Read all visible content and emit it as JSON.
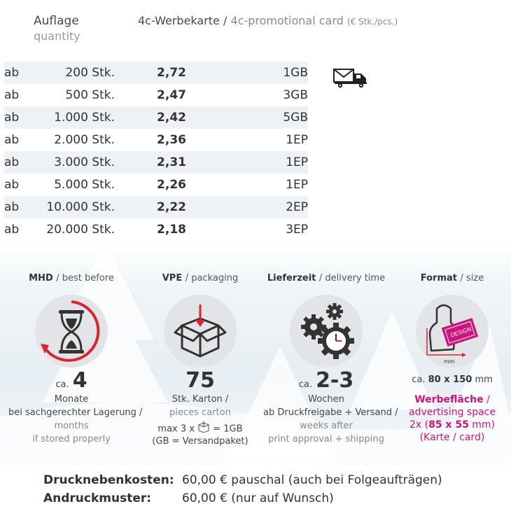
{
  "header": {
    "quantity_de": "Auflage",
    "quantity_en": "quantity",
    "product_de": "4c-Werbekarte /",
    "product_en": "4c-promotional card",
    "unit": "(€ Stk./pcs.)"
  },
  "prices": {
    "rows": [
      {
        "prefix": "ab",
        "qty": "200 Stk.",
        "price": "2,72",
        "ship": "1GB"
      },
      {
        "prefix": "ab",
        "qty": "500 Stk.",
        "price": "2,47",
        "ship": "3GB"
      },
      {
        "prefix": "ab",
        "qty": "1.000 Stk.",
        "price": "2,42",
        "ship": "5GB"
      },
      {
        "prefix": "ab",
        "qty": "2.000 Stk.",
        "price": "2,36",
        "ship": "1EP"
      },
      {
        "prefix": "ab",
        "qty": "3.000 Stk.",
        "price": "2,31",
        "ship": "1EP"
      },
      {
        "prefix": "ab",
        "qty": "5.000 Stk.",
        "price": "2,26",
        "ship": "1EP"
      },
      {
        "prefix": "ab",
        "qty": "10.000 Stk.",
        "price": "2,22",
        "ship": "2EP"
      },
      {
        "prefix": "ab",
        "qty": "20.000 Stk.",
        "price": "2,18",
        "ship": "3EP"
      }
    ]
  },
  "icons": {
    "shipping": "mail-truck-icon"
  },
  "mhd": {
    "title_de": "MHD",
    "title_en": "/ best before",
    "prefix": "ca.",
    "value": "4",
    "line1": "Monate",
    "line2": "bei sachgerechter Lagerung /",
    "line3": "months",
    "line4": "if stored properly"
  },
  "vpe": {
    "title_de": "VPE",
    "title_en": "/ packaging",
    "value": "75",
    "line1": "Stk. Karton /",
    "line2": "pieces carton",
    "note_pre": "max 3 x",
    "note_post": "= 1GB",
    "note2": "(GB = Versandpaket)"
  },
  "delivery": {
    "title_de": "Lieferzeit",
    "title_en": "/ delivery time",
    "prefix": "ca.",
    "value": "2-3",
    "line1": "Wochen",
    "line2": "ab Druckfreigabe + Versand /",
    "line3": "weeks after",
    "line4": "print approval + shipping"
  },
  "format": {
    "title_de": "Format",
    "title_en": "/ size",
    "card_label": "DESIGN",
    "mm_label": "mm",
    "dim_pre": "ca.",
    "dim_value": "80 x 150",
    "dim_unit": "mm",
    "ad_de": "Werbefläche",
    "ad_slash": " /",
    "ad_en": "advertising space",
    "ad_count": "2x (",
    "ad_size": "85 x 55",
    "ad_unit": " mm)",
    "ad_note": "(Karte / card)"
  },
  "footer": [
    {
      "label": "Drucknebenkosten:",
      "value": "60,00 € pauschal (auch bei Folgeaufträgen)"
    },
    {
      "label": "Andruckmuster:",
      "value": "60,00 € (nur auf Wunsch)"
    }
  ],
  "colors": {
    "accent": "#d0137a",
    "red": "#d9252f",
    "row_alt": "#eef1f6"
  }
}
